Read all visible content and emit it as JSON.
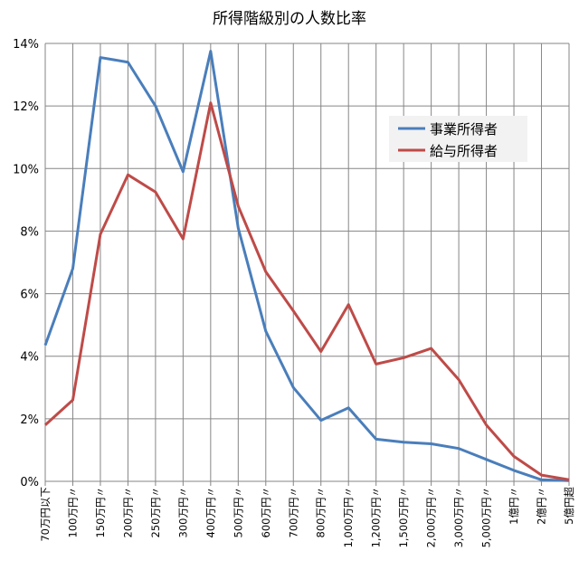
{
  "chart_data": {
    "type": "line",
    "title": "所得階級別の人数比率",
    "xlabel": "",
    "ylabel": "",
    "ylim": [
      0,
      14
    ],
    "yticks": [
      "0%",
      "2%",
      "4%",
      "6%",
      "8%",
      "10%",
      "12%",
      "14%"
    ],
    "grid": true,
    "legend_position": "top-right",
    "categories": [
      "70万円以下",
      "100万円〃",
      "150万円〃",
      "200万円〃",
      "250万円〃",
      "300万円〃",
      "400万円〃",
      "500万円〃",
      "600万円〃",
      "700万円〃",
      "800万円〃",
      "1,000万円〃",
      "1,200万円〃",
      "1,500万円〃",
      "2,000万円〃",
      "3,000万円〃",
      "5,000万円〃",
      "1億円〃",
      "2億円〃",
      "5億円超"
    ],
    "series": [
      {
        "name": "事業所得者",
        "color": "#4a7ebb",
        "values": [
          4.35,
          6.8,
          13.55,
          13.4,
          12.0,
          9.9,
          13.75,
          8.1,
          4.8,
          3.0,
          1.95,
          2.35,
          1.35,
          1.25,
          1.2,
          1.05,
          0.7,
          0.35,
          0.05,
          0.02
        ]
      },
      {
        "name": "給与所得者",
        "color": "#be4b48",
        "values": [
          1.8,
          2.6,
          7.9,
          9.8,
          9.25,
          7.75,
          12.1,
          8.8,
          6.7,
          5.45,
          4.15,
          5.65,
          3.75,
          3.95,
          4.25,
          3.25,
          1.8,
          0.8,
          0.2,
          0.05
        ]
      }
    ]
  }
}
